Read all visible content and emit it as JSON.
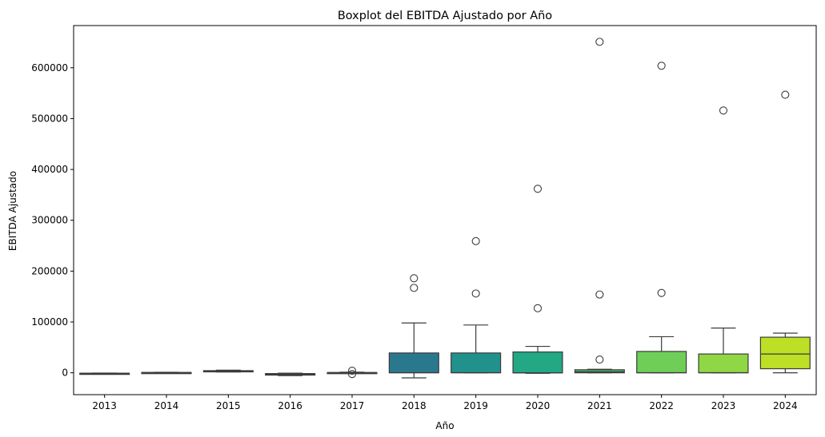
{
  "chart_data": {
    "type": "boxplot",
    "title": "Boxplot del EBITDA Ajustado por Año",
    "xlabel": "Año",
    "ylabel": "EBITDA Ajustado",
    "ylim": [
      -43000,
      683000
    ],
    "yticks": [
      0,
      100000,
      200000,
      300000,
      400000,
      500000,
      600000
    ],
    "ytick_labels": [
      "0",
      "100000",
      "200000",
      "300000",
      "400000",
      "500000",
      "600000"
    ],
    "grid": false,
    "categories": [
      "2013",
      "2014",
      "2015",
      "2016",
      "2017",
      "2018",
      "2019",
      "2020",
      "2021",
      "2022",
      "2023",
      "2024"
    ],
    "boxes": [
      {
        "year": "2013",
        "whisker_low": -1500,
        "q1": -1200,
        "median": -1000,
        "q3": -800,
        "whisker_high": -500,
        "outliers": [],
        "color": "#46085c"
      },
      {
        "year": "2014",
        "whisker_low": 0,
        "q1": 300,
        "median": 500,
        "q3": 700,
        "whisker_high": 1000,
        "outliers": [],
        "color": "#472f7d"
      },
      {
        "year": "2015",
        "whisker_low": 1500,
        "q1": 2000,
        "median": 2800,
        "q3": 4200,
        "whisker_high": 5200,
        "outliers": [],
        "color": "#3e4a89"
      },
      {
        "year": "2016",
        "whisker_low": -5500,
        "q1": -4500,
        "median": -2500,
        "q3": -1500,
        "whisker_high": -800,
        "outliers": [],
        "color": "#31688e"
      },
      {
        "year": "2017",
        "whisker_low": -600,
        "q1": -200,
        "median": 200,
        "q3": 600,
        "whisker_high": 1200,
        "outliers": [
          4000,
          -2500
        ],
        "color": "#26828e"
      },
      {
        "year": "2018",
        "whisker_low": -10000,
        "q1": 0,
        "median": 200,
        "q3": 39000,
        "whisker_high": 98000,
        "outliers": [
          186000,
          167000
        ],
        "color": "#2a788e"
      },
      {
        "year": "2019",
        "whisker_low": 0,
        "q1": 0,
        "median": 200,
        "q3": 39000,
        "whisker_high": 94000,
        "outliers": [
          259000,
          156000
        ],
        "color": "#21918c"
      },
      {
        "year": "2020",
        "whisker_low": -1000,
        "q1": -200,
        "median": 0,
        "q3": 41000,
        "whisker_high": 52000,
        "outliers": [
          362000,
          127000
        ],
        "color": "#22a884"
      },
      {
        "year": "2021",
        "whisker_low": 0,
        "q1": 0,
        "median": 2000,
        "q3": 6000,
        "whisker_high": 7000,
        "outliers": [
          651000,
          154000,
          26000
        ],
        "color": "#44bf70"
      },
      {
        "year": "2022",
        "whisker_low": 0,
        "q1": 0,
        "median": 200,
        "q3": 42000,
        "whisker_high": 71000,
        "outliers": [
          604000,
          157000
        ],
        "color": "#6ece58"
      },
      {
        "year": "2023",
        "whisker_low": 0,
        "q1": 0,
        "median": 200,
        "q3": 37000,
        "whisker_high": 88000,
        "outliers": [
          516000
        ],
        "color": "#8fd744"
      },
      {
        "year": "2024",
        "whisker_low": 0,
        "q1": 8000,
        "median": 37000,
        "q3": 70000,
        "whisker_high": 78000,
        "outliers": [
          547000
        ],
        "color": "#bddf26"
      }
    ]
  }
}
